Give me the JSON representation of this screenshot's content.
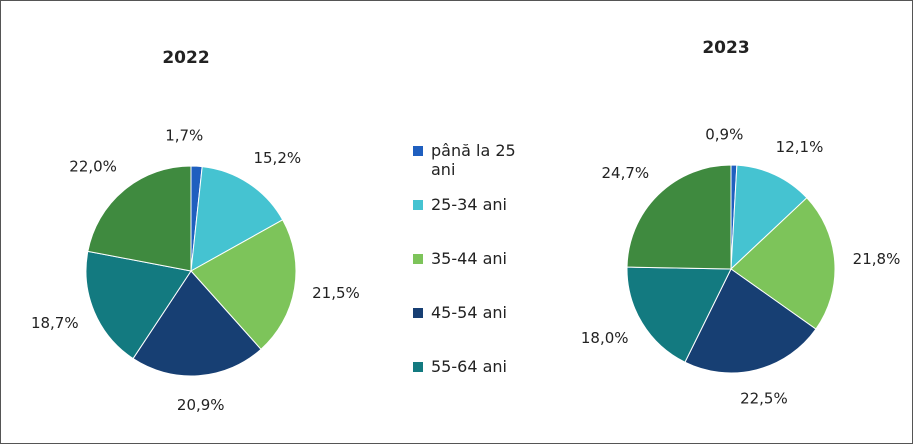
{
  "legend": {
    "categories": [
      "până la 25 ani",
      "25-34 ani",
      "35-44 ani",
      "45-54 ani",
      "55-64 ani",
      null
    ],
    "colors": [
      "#1f5fbf",
      "#45c3d1",
      "#7dc45a",
      "#173f73",
      "#137a80",
      "#3f8a3f"
    ]
  },
  "chart_data": [
    {
      "type": "pie",
      "title": "2022",
      "values": [
        1.7,
        15.2,
        21.5,
        20.9,
        18.7,
        22.0
      ],
      "value_labels": [
        "1,7%",
        "15,2%",
        "21,5%",
        "20,9%",
        "18,7%",
        "22,0%"
      ]
    },
    {
      "type": "pie",
      "title": "2023",
      "values": [
        0.9,
        12.1,
        21.8,
        22.5,
        18.0,
        24.7
      ],
      "value_labels": [
        "0,9%",
        "12,1%",
        "21,8%",
        "22,5%",
        "18,0%",
        "24,7%"
      ]
    }
  ]
}
